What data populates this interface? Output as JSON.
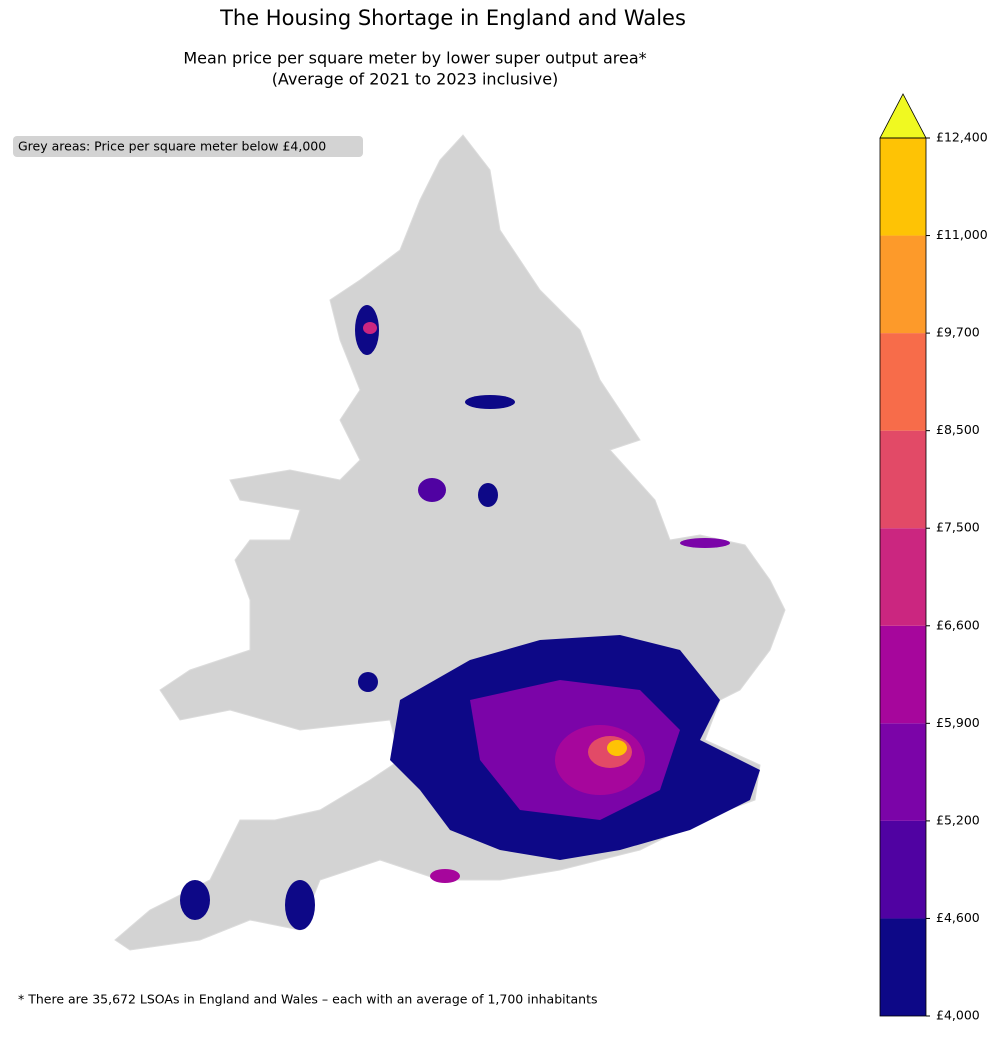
{
  "title": "The Housing Shortage in England and Wales",
  "subtitle": [
    "Mean price per square meter by lower super output area*",
    "(Average of 2021 to 2023 inclusive)"
  ],
  "note": "Grey areas: Price per square meter below £4,000",
  "footnote": "* There are 35,672 LSOAs in England and Wales – each with an average of 1,700 inhabitants",
  "colorbar": {
    "ticks": [
      {
        "value": 4000,
        "label": "£4,000"
      },
      {
        "value": 4600,
        "label": "£4,600"
      },
      {
        "value": 5200,
        "label": "£5,200"
      },
      {
        "value": 5900,
        "label": "£5,900"
      },
      {
        "value": 6600,
        "label": "£6,600"
      },
      {
        "value": 7500,
        "label": "£7,500"
      },
      {
        "value": 8500,
        "label": "£8,500"
      },
      {
        "value": 9700,
        "label": "£9,700"
      },
      {
        "value": 11000,
        "label": "£11,000"
      },
      {
        "value": 12400,
        "label": "£12,400"
      }
    ],
    "colors": [
      "#0d0887",
      "#5002a2",
      "#7b04a8",
      "#a6069c",
      "#cb2680",
      "#e24a67",
      "#f76c4a",
      "#fd9a2a",
      "#fec305"
    ],
    "extend_color": "#f0f921"
  }
}
